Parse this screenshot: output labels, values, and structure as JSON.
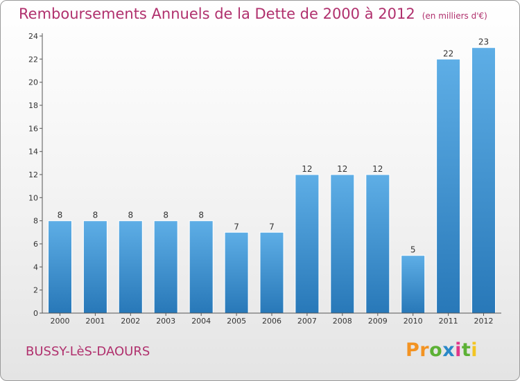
{
  "title": "Remboursements Annuels de la Dette de 2000 à 2012",
  "unit": "(en milliers d'€)",
  "city": "BUSSY-LèS-DAOURS",
  "logo": {
    "p": "P",
    "r": "r",
    "o": "o",
    "x": "x",
    "i1": "i",
    "t": "t",
    "i2": "i"
  },
  "colors": {
    "title": "#b0306d",
    "bar_top": "#5eaee6",
    "bar_bottom": "#2878b8"
  },
  "chart_data": {
    "type": "bar",
    "title": "Remboursements Annuels de la Dette de 2000 à 2012",
    "categories": [
      "2000",
      "2001",
      "2002",
      "2003",
      "2004",
      "2005",
      "2006",
      "2007",
      "2008",
      "2009",
      "2010",
      "2011",
      "2012"
    ],
    "values": [
      8,
      8,
      8,
      8,
      8,
      7,
      7,
      12,
      12,
      12,
      5,
      22,
      23
    ],
    "xlabel": "",
    "ylabel": "",
    "ylim": [
      0,
      24
    ],
    "yticks": [
      0,
      2,
      4,
      6,
      8,
      10,
      12,
      14,
      16,
      18,
      20,
      22,
      24
    ],
    "grid": false,
    "data_labels": true
  }
}
